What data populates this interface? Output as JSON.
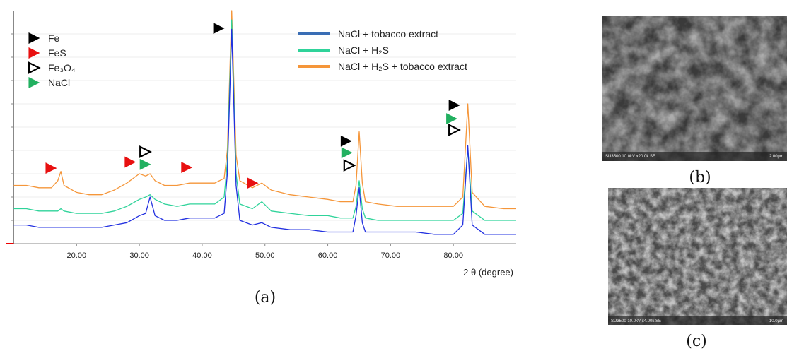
{
  "chart_data": {
    "type": "line",
    "xlabel": "2 θ (degree)",
    "xlim": [
      10,
      90
    ],
    "xticks": [
      {
        "value": 20,
        "label": "20.00"
      },
      {
        "value": 30,
        "label": "30.00"
      },
      {
        "value": 40,
        "label": "40.00"
      },
      {
        "value": 50,
        "label": "50.00"
      },
      {
        "value": 60,
        "label": "60.00"
      },
      {
        "value": 70,
        "label": "70.00"
      },
      {
        "value": 80,
        "label": "80.00"
      }
    ],
    "ylim": [
      0,
      100
    ],
    "yticks": [
      10,
      20,
      30,
      40,
      50,
      60,
      70,
      80,
      90
    ],
    "grid": true,
    "x": [
      10,
      12,
      14,
      16,
      17,
      17.5,
      18,
      20,
      22,
      24,
      26,
      28,
      30,
      31,
      31.7,
      32.5,
      34,
      36,
      38,
      40,
      42,
      43.5,
      44,
      44.7,
      45.4,
      46,
      48,
      49.5,
      51,
      54,
      57,
      60,
      62,
      64,
      64.5,
      65,
      65.5,
      66,
      68,
      71,
      74,
      77,
      80,
      81.5,
      82.3,
      83,
      85,
      88,
      90
    ],
    "series": [
      {
        "name": "NaCl + H₂S + tobacco extract",
        "color": "#f5963a",
        "values": [
          25,
          25,
          24,
          24,
          27,
          31,
          25,
          22,
          21,
          21,
          23,
          26,
          30,
          29,
          30,
          27,
          25,
          25,
          26,
          26,
          26,
          28,
          40,
          100,
          38,
          27,
          24,
          26,
          23,
          21,
          20,
          19,
          18,
          18,
          25,
          48,
          26,
          18,
          17,
          16,
          16,
          16,
          16,
          20,
          60,
          22,
          16,
          15,
          15
        ]
      },
      {
        "name": "NaCl + H₂S",
        "color": "#2fd39a",
        "values": [
          15,
          15,
          14,
          14,
          14,
          15,
          14,
          13,
          13,
          13,
          14,
          16,
          19,
          20,
          21,
          19,
          17,
          16,
          17,
          17,
          17,
          20,
          35,
          96,
          30,
          17,
          15,
          18,
          14,
          13,
          12,
          12,
          11,
          11,
          16,
          27,
          15,
          11,
          10,
          10,
          10,
          10,
          10,
          13,
          41,
          14,
          10,
          10,
          10
        ]
      },
      {
        "name": "NaCl + tobacco extract",
        "color": "#2230e0",
        "values": [
          8,
          8,
          7,
          7,
          7,
          7,
          7,
          7,
          7,
          7,
          8,
          9,
          12,
          13,
          20,
          12,
          10,
          10,
          11,
          11,
          11,
          13,
          30,
          92,
          25,
          10,
          8,
          9,
          7,
          6,
          6,
          5,
          5,
          5,
          12,
          24,
          9,
          5,
          5,
          5,
          5,
          4,
          4,
          8,
          42,
          8,
          4,
          4,
          4
        ]
      }
    ],
    "legend_colors": [
      "#3a6eb5",
      "#2fd39a",
      "#f5963a"
    ],
    "phases": [
      {
        "name": "Fe",
        "color": "#000000",
        "filled": true
      },
      {
        "name": "FeS",
        "color": "#e81010",
        "filled": true
      },
      {
        "name": "Fe₃O₄",
        "color": "#000000",
        "filled": false
      },
      {
        "name": "NaCl",
        "color": "#22b060",
        "filled": true
      }
    ],
    "markers": [
      {
        "phase": 0,
        "x": 42.5,
        "y": 92.4
      },
      {
        "phase": 1,
        "x": 15.8,
        "y": 32.4
      },
      {
        "phase": 1,
        "x": 28.4,
        "y": 35
      },
      {
        "phase": 2,
        "x": 30.8,
        "y": 39.4
      },
      {
        "phase": 3,
        "x": 30.8,
        "y": 34
      },
      {
        "phase": 1,
        "x": 37.4,
        "y": 32.7
      },
      {
        "phase": 1,
        "x": 47.9,
        "y": 26
      },
      {
        "phase": 0,
        "x": 62.8,
        "y": 44
      },
      {
        "phase": 3,
        "x": 62.9,
        "y": 39
      },
      {
        "phase": 2,
        "x": 63.3,
        "y": 33.6
      },
      {
        "phase": 0,
        "x": 80,
        "y": 59.4
      },
      {
        "phase": 3,
        "x": 79.6,
        "y": 53.6
      },
      {
        "phase": 2,
        "x": 80,
        "y": 48.8
      }
    ]
  },
  "labels": {
    "a": "(a)",
    "b": "(b)",
    "c": "(c)"
  },
  "images": [
    {
      "caption": "SU3500 10.0kV x20.0k SE",
      "scale": "2.00µm"
    },
    {
      "caption": "SU3500 10.0kV x4.00k SE",
      "scale": "10.0µm"
    }
  ]
}
